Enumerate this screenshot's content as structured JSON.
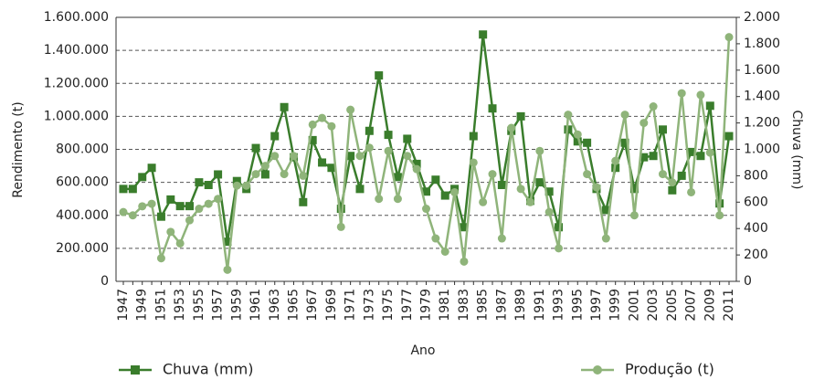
{
  "chart_data": {
    "type": "line",
    "x_label": "Ano",
    "y_label": "Rendimento (t)",
    "y2_label": "Chuva (mm)",
    "categories": [
      "1947",
      null,
      "1949",
      null,
      "1951",
      null,
      "1953",
      null,
      "1955",
      null,
      "1957",
      null,
      "1959",
      null,
      "1961",
      null,
      "1963",
      null,
      "1965",
      null,
      "1967",
      null,
      "1969",
      null,
      "1971",
      null,
      "1973",
      null,
      "1975",
      null,
      "1977",
      null,
      "1979",
      null,
      "1981",
      null,
      "1983",
      null,
      "1985",
      null,
      "1987",
      null,
      "1989",
      null,
      "1991",
      null,
      "1993",
      null,
      "1995",
      null,
      "1997",
      null,
      "1999",
      null,
      "2001",
      null,
      "2003",
      null,
      "2005",
      null,
      "2007",
      null,
      "2009",
      null,
      "2011"
    ],
    "series": [
      {
        "name": "Chuva (mm)",
        "color": "#3a7d2c",
        "marker": "square",
        "axis": "y2",
        "values": [
          700,
          700,
          790,
          860,
          490,
          620,
          570,
          570,
          750,
          730,
          810,
          300,
          760,
          700,
          1010,
          810,
          1100,
          1320,
          940,
          600,
          1070,
          900,
          860,
          550,
          950,
          700,
          1140,
          1560,
          1110,
          790,
          1080,
          890,
          680,
          770,
          650,
          700,
          410,
          1100,
          1870,
          1310,
          730,
          1140,
          1250,
          610,
          750,
          680,
          410,
          1150,
          1060,
          1050,
          700,
          540,
          860,
          1050,
          700,
          940,
          950,
          1150,
          690,
          800,
          980,
          950,
          1330,
          590,
          1100
        ]
      },
      {
        "name": "Produção (t)",
        "color": "#8fb47a",
        "marker": "circle",
        "values": [
          420000,
          400000,
          455000,
          470000,
          140000,
          300000,
          230000,
          370000,
          440000,
          470000,
          500000,
          70000,
          580000,
          580000,
          650000,
          700000,
          760000,
          650000,
          760000,
          640000,
          950000,
          990000,
          940000,
          330000,
          1040000,
          760000,
          810000,
          500000,
          790000,
          500000,
          760000,
          680000,
          440000,
          260000,
          180000,
          540000,
          120000,
          720000,
          480000,
          650000,
          260000,
          930000,
          560000,
          480000,
          790000,
          420000,
          200000,
          1010000,
          890000,
          650000,
          570000,
          260000,
          730000,
          1010000,
          400000,
          960000,
          1060000,
          650000,
          600000,
          1140000,
          540000,
          1130000,
          780000,
          400000,
          1480000
        ]
      }
    ],
    "ylim": [
      0,
      1600000
    ],
    "yticks": [
      0,
      {
        "value": 200000,
        "label": "200.000"
      },
      {
        "value": 400000,
        "label": "400.000"
      },
      {
        "value": 600000,
        "label": "600.000"
      },
      {
        "value": 800000,
        "label": "800.000"
      },
      {
        "value": 1000000,
        "label": "1.000.000"
      },
      {
        "value": 1200000,
        "label": "1.200.000"
      },
      {
        "value": 1400000,
        "label": "1.400.000"
      },
      {
        "value": 1600000,
        "label": "1.600.000"
      }
    ],
    "y2lim": [
      0,
      2000
    ],
    "y2ticks": [
      0,
      200,
      400,
      600,
      800,
      {
        "value": 1000,
        "label": "1.000"
      },
      {
        "value": 1200,
        "label": "1.200"
      },
      {
        "value": 1400,
        "label": "1.400"
      },
      {
        "value": 1600,
        "label": "1.600"
      },
      {
        "value": 1800,
        "label": "1.800"
      },
      {
        "value": 2000,
        "label": "2.000"
      }
    ],
    "grid": true
  }
}
